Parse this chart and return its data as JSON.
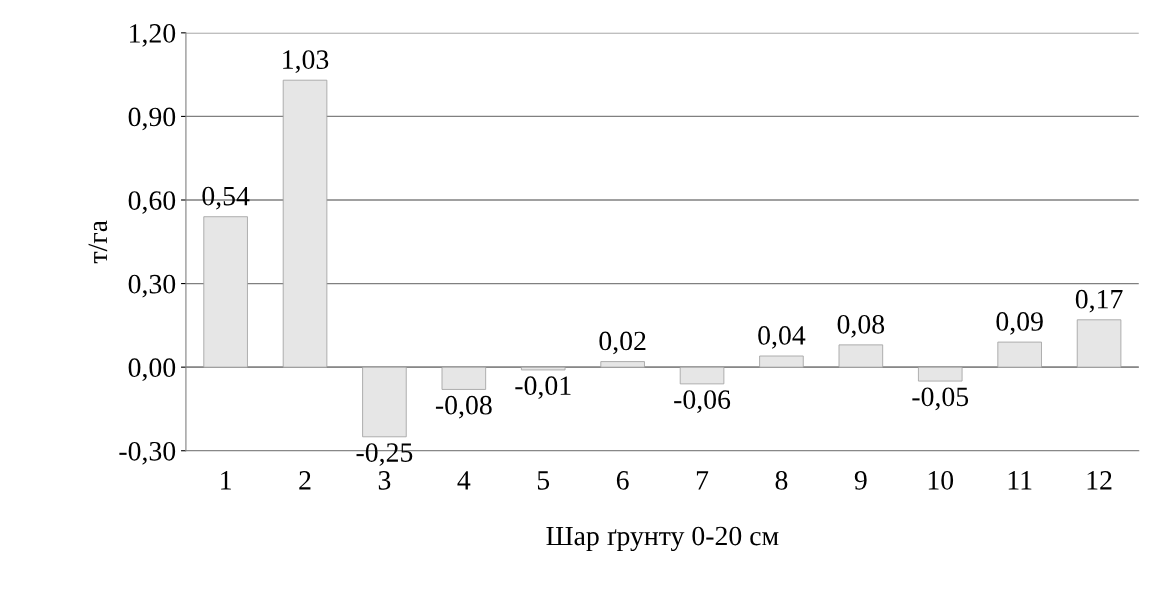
{
  "chart_data": {
    "type": "bar",
    "xlabel": "Шар ґрунту 0-20 см",
    "ylabel": "т/га",
    "categories": [
      "1",
      "2",
      "3",
      "4",
      "5",
      "6",
      "7",
      "8",
      "9",
      "10",
      "11",
      "12"
    ],
    "values": [
      0.54,
      1.03,
      -0.25,
      -0.08,
      -0.01,
      0.02,
      -0.06,
      0.04,
      0.08,
      -0.05,
      0.09,
      0.17
    ],
    "value_labels": [
      "0,54",
      "1,03",
      "-0,25",
      "-0,08",
      "-0,01",
      "0,02",
      "-0,06",
      "0,04",
      "0,08",
      "-0,05",
      "0,09",
      "0,17"
    ],
    "color": "#e6e6e6",
    "ylim": [
      -0.3,
      1.2
    ],
    "yticks": [
      {
        "value": -0.3,
        "label": "-0,30"
      },
      {
        "value": 0,
        "label": "0,00"
      },
      {
        "value": 0.3,
        "label": "0,30"
      },
      {
        "value": 0.6,
        "label": "0,60"
      },
      {
        "value": 0.9,
        "label": "0,90"
      },
      {
        "value": 1.2,
        "label": "1,20"
      }
    ],
    "grid": "y",
    "legend": false
  }
}
